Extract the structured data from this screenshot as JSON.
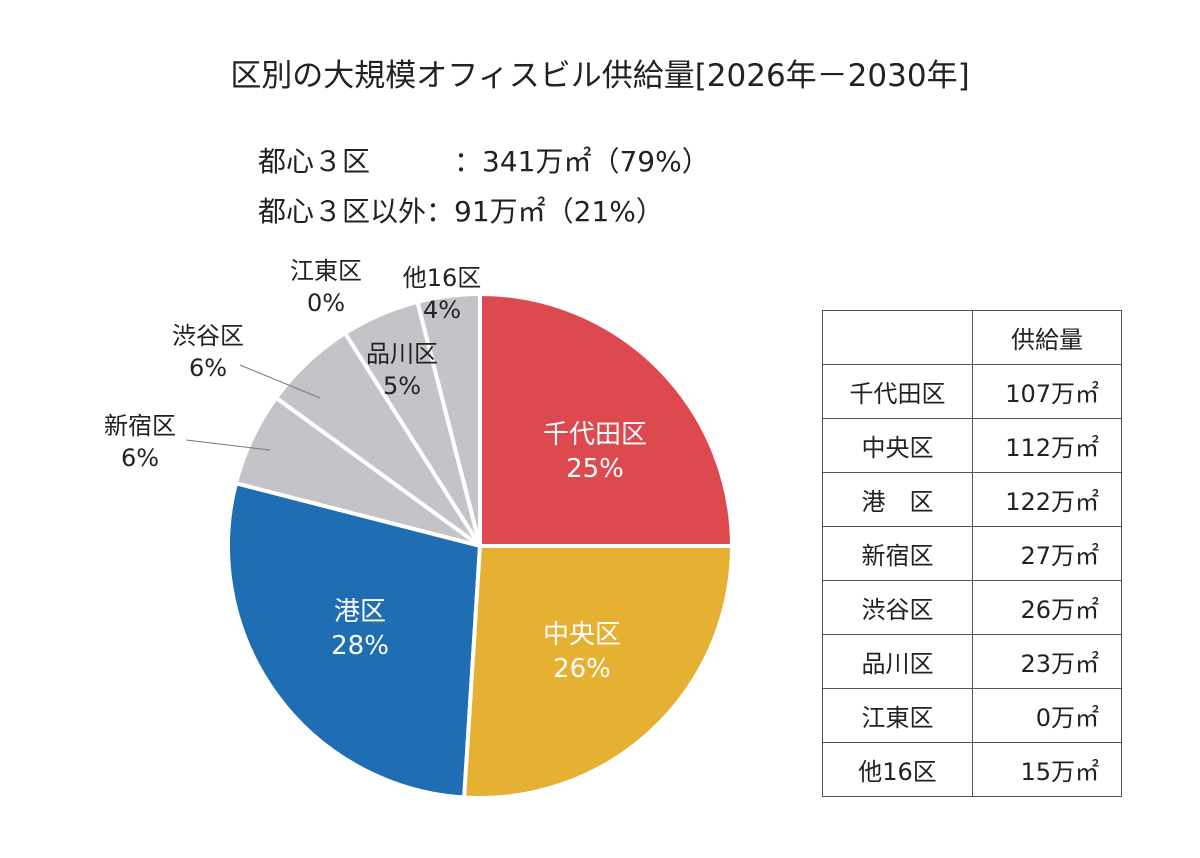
{
  "title": "区別の大規模オフィスビル供給量[2026年－2030年]",
  "summary": [
    {
      "label": "都心３区　　　",
      "value": "：341万㎡（79%）"
    },
    {
      "label": "都心３区以外",
      "value": "：91万㎡（21%）"
    }
  ],
  "chart_data": {
    "type": "pie",
    "title": "区別の大規模オフィスビル供給量[2026年－2030年]",
    "start": "12 o'clock",
    "direction": "clockwise",
    "slices": [
      {
        "label": "千代田区",
        "percent": 25,
        "value": 107,
        "color": "#dc4a4f"
      },
      {
        "label": "中央区",
        "percent": 26,
        "value": 112,
        "color": "#e6b032"
      },
      {
        "label": "港区",
        "percent": 28,
        "value": 122,
        "color": "#1f6db2"
      },
      {
        "label": "新宿区",
        "percent": 6,
        "value": 27,
        "color": "#c4c3c8"
      },
      {
        "label": "渋谷区",
        "percent": 6,
        "value": 26,
        "color": "#c4c3c8"
      },
      {
        "label": "品川区",
        "percent": 5,
        "value": 23,
        "color": "#c4c3c8"
      },
      {
        "label": "江東区",
        "percent": 0,
        "value": 0,
        "color": "#c4c3c8"
      },
      {
        "label": "他16区",
        "percent": 4,
        "value": 15,
        "color": "#c4c3c8"
      }
    ],
    "unit": "万㎡"
  },
  "table": {
    "header": [
      "",
      "供給量"
    ],
    "rows": [
      [
        "千代田区",
        "107万㎡"
      ],
      [
        "中央区",
        "112万㎡"
      ],
      [
        "港　区",
        "122万㎡"
      ],
      [
        "新宿区",
        "27万㎡"
      ],
      [
        "渋谷区",
        "26万㎡"
      ],
      [
        "品川区",
        "23万㎡"
      ],
      [
        "江東区",
        "0万㎡"
      ],
      [
        "他16区",
        "15万㎡"
      ]
    ]
  }
}
